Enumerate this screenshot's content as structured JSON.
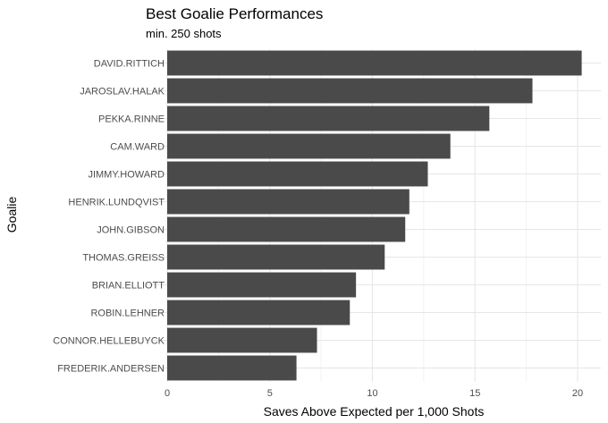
{
  "chart_data": {
    "type": "bar",
    "orientation": "horizontal",
    "title": "Best Goalie Performances",
    "subtitle": "min. 250 shots",
    "xlabel": "Saves Above Expected per 1,000 Shots",
    "ylabel": "Goalie",
    "xlim": [
      0,
      20
    ],
    "xticks": [
      0,
      5,
      10,
      15,
      20
    ],
    "grid": true,
    "categories": [
      "DAVID.RITTICH",
      "JAROSLAV.HALAK",
      "PEKKA.RINNE",
      "CAM.WARD",
      "JIMMY.HOWARD",
      "HENRIK.LUNDQVIST",
      "JOHN.GIBSON",
      "THOMAS.GREISS",
      "BRIAN.ELLIOTT",
      "ROBIN.LEHNER",
      "CONNOR.HELLEBUYCK",
      "FREDERIK.ANDERSEN"
    ],
    "values": [
      20.2,
      17.8,
      15.7,
      13.8,
      12.7,
      11.8,
      11.6,
      10.6,
      9.2,
      8.9,
      7.3,
      6.3
    ],
    "colors": {
      "bar": "#4a4a4a",
      "grid_major": "#e6e6e6",
      "grid_minor": "#f2f2f2"
    }
  }
}
